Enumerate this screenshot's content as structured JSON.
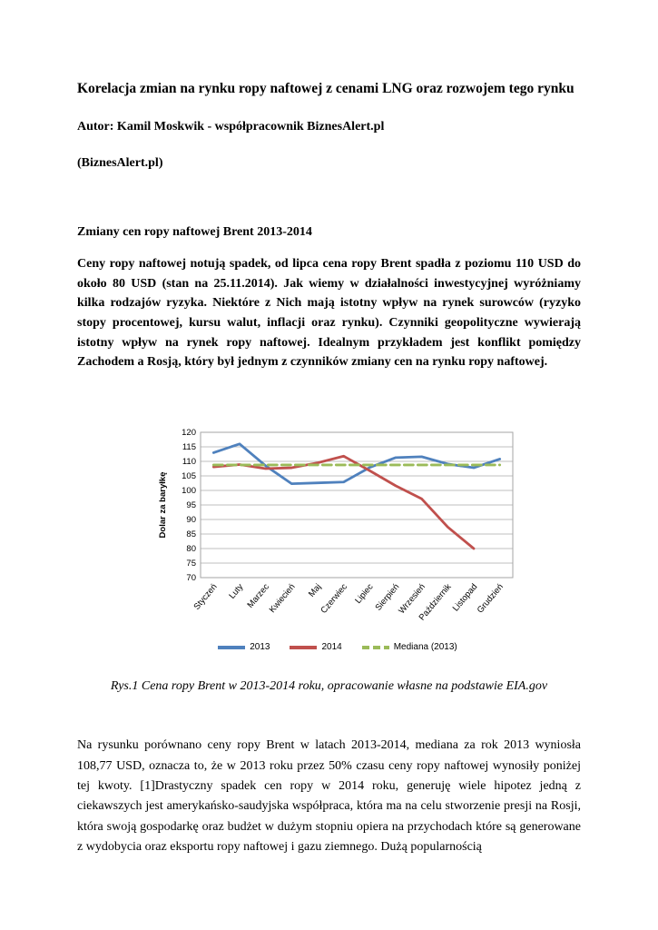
{
  "page": {
    "title": "Korelacja zmian na rynku ropy naftowej z cenami LNG oraz rozwojem tego rynku",
    "author_line": "Autor: Kamil Moskwik - współpracownik BiznesAlert.pl",
    "publisher_line": "(BiznesAlert.pl)",
    "section_heading": "Zmiany cen ropy naftowej Brent 2013-2014",
    "lead_paragraph": "Ceny ropy naftowej notują spadek, od lipca cena ropy Brent spadła z poziomu 110 USD do około 80 USD (stan na 25.11.2014). Jak wiemy w działalności inwestycyjnej wyróżniamy kilka rodzajów ryzyka.  Niektóre z Nich mają istotny wpływ na rynek surowców (ryzyko stopy procentowej, kursu walut, inflacji oraz rynku). Czynniki geopolityczne wywierają istotny wpływ na rynek ropy naftowej. Idealnym przykładem jest konflikt pomiędzy Zachodem a Rosją, który był jednym z czynników zmiany cen na rynku ropy naftowej.",
    "figure_caption": "Rys.1 Cena ropy Brent w 2013-2014 roku, opracowanie własne na podstawie EIA.gov",
    "body_paragraph": "Na rysunku porównano ceny ropy Brent w latach 2013-2014, mediana za rok 2013 wyniosła 108,77 USD, oznacza to, że w 2013 roku przez 50% czasu ceny ropy naftowej wynosiły poniżej tej kwoty. [1]Drastyczny spadek cen ropy w 2014 roku, generuję wiele hipotez jedną z ciekawszych jest amerykańsko-saudyjska współpraca, która ma na celu stworzenie presji na Rosji, która swoją gospodarkę oraz budżet w dużym stopniu opiera  na przychodach które są generowane z wydobycia oraz eksportu ropy naftowej i gazu ziemnego. Dużą popularnością"
  },
  "chart_data": {
    "type": "line",
    "categories": [
      "Styczeń",
      "Luty",
      "Marzec",
      "Kwiecień",
      "Maj",
      "Czerwiec",
      "Lipiec",
      "Sierpień",
      "Wrzesień",
      "Październik",
      "Listopad",
      "Grudzień"
    ],
    "series": [
      {
        "name": "2013",
        "color": "#4f81bd",
        "dash": null,
        "values": [
          113.0,
          116.0,
          108.5,
          102.3,
          102.6,
          102.9,
          107.9,
          111.3,
          111.6,
          109.1,
          107.8,
          110.8
        ]
      },
      {
        "name": "2014",
        "color": "#c0504d",
        "dash": null,
        "values": [
          108.1,
          108.9,
          107.5,
          107.8,
          109.5,
          111.8,
          106.8,
          101.6,
          97.1,
          87.4,
          80.0,
          null
        ]
      },
      {
        "name": "Mediana (2013)",
        "color": "#9bbb59",
        "dash": "10,5",
        "values": [
          108.77,
          108.77,
          108.77,
          108.77,
          108.77,
          108.77,
          108.77,
          108.77,
          108.77,
          108.77,
          108.77,
          108.77
        ]
      }
    ],
    "title": "",
    "xlabel": "",
    "ylabel": "Dolar za baryłkę",
    "ylim": [
      70,
      120
    ],
    "ytick_step": 5,
    "grid": true,
    "legend_position": "bottom",
    "grid_color": "#bfbfbf",
    "plot_border_color": "#a6a6a6"
  }
}
